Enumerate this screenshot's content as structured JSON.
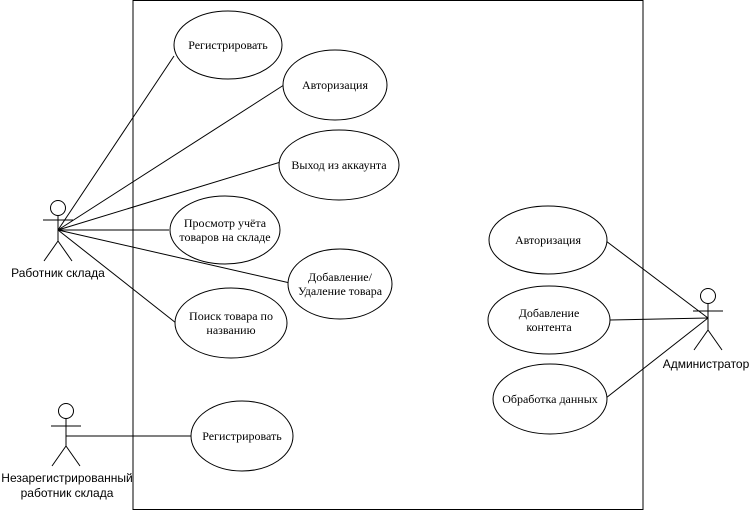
{
  "actors": {
    "warehouse_worker": "Работник склада",
    "unregistered_worker": [
      "Незарегистрированный",
      "работник склада"
    ],
    "administrator": "Администратор"
  },
  "use_cases": {
    "register_top": "Регистрировать",
    "authorize_left": "Авторизация",
    "logout": "Выход из аккаунта",
    "view_stock": [
      "Просмотр учёта",
      "товаров на складе"
    ],
    "add_remove": [
      "Добавление/",
      "Удаление товара"
    ],
    "search_item": [
      "Поиск товара по",
      "названию"
    ],
    "register_bottom": "Регистрировать",
    "authorize_right": "Авторизация",
    "add_content": [
      "Добавление",
      "контента"
    ],
    "process_data": "Обработка данных"
  },
  "colors": {
    "stroke": "#000000",
    "fill": "#ffffff"
  }
}
